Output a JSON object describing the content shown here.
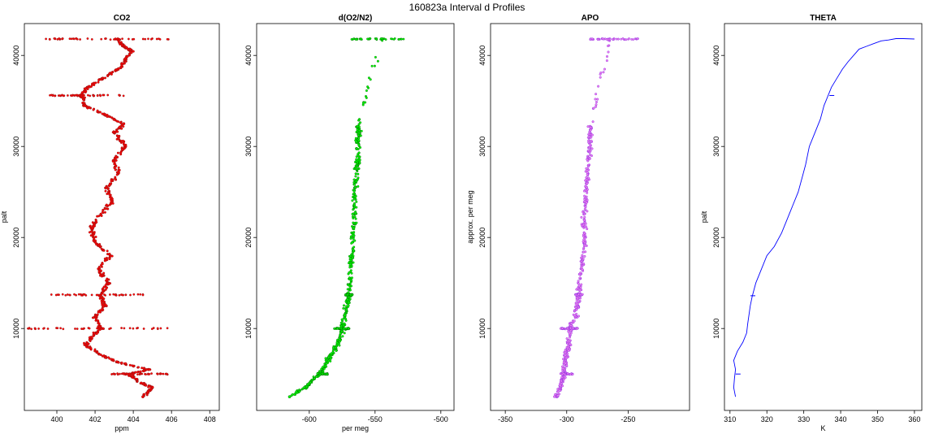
{
  "figure": {
    "title": "160823a   Interval d Profiles"
  },
  "chart_data": [
    {
      "type": "scatter",
      "title": "CO2",
      "xlabel": "ppm",
      "ylabel": "palt",
      "xlim": [
        398.3,
        408.5
      ],
      "ylim": [
        1000,
        43500
      ],
      "xticks": [
        400,
        402,
        404,
        406,
        408
      ],
      "yticks": [
        10000,
        20000,
        30000,
        40000
      ],
      "color": "#ff0000",
      "edge": "#8b1a1a",
      "series": [
        {
          "values": [
            [
              404.5,
              2500
            ],
            [
              405.0,
              3500
            ],
            [
              404.2,
              4200
            ],
            [
              403.8,
              5000
            ],
            [
              404.8,
              5500
            ],
            [
              403.2,
              6300
            ],
            [
              402.2,
              7200
            ],
            [
              401.5,
              8200
            ],
            [
              401.8,
              9000
            ],
            [
              402.3,
              10000
            ],
            [
              402.0,
              11300
            ],
            [
              402.5,
              12500
            ],
            [
              402.3,
              13700
            ],
            [
              402.7,
              15000
            ],
            [
              402.2,
              16500
            ],
            [
              402.8,
              18000
            ],
            [
              402.0,
              19500
            ],
            [
              401.8,
              21000
            ],
            [
              402.3,
              22500
            ],
            [
              402.9,
              24000
            ],
            [
              402.6,
              25500
            ],
            [
              403.2,
              27000
            ],
            [
              403.0,
              28500
            ],
            [
              403.6,
              30000
            ],
            [
              403.0,
              31500
            ],
            [
              403.5,
              32500
            ],
            [
              402.5,
              33500
            ],
            [
              401.4,
              34500
            ],
            [
              401.3,
              35600
            ],
            [
              401.6,
              36500
            ],
            [
              402.4,
              37500
            ],
            [
              403.2,
              38500
            ],
            [
              403.6,
              39500
            ],
            [
              403.9,
              40500
            ],
            [
              403.5,
              41000
            ],
            [
              403.2,
              41800
            ]
          ]
        }
      ]
    },
    {
      "type": "scatter",
      "title": "d(O2/N2)",
      "xlabel": "per meg",
      "ylabel": "",
      "xlim": [
        -640,
        -490
      ],
      "ylim": [
        1000,
        43500
      ],
      "xticks": [
        -600,
        -550,
        -500
      ],
      "yticks": [
        10000,
        20000,
        30000,
        40000
      ],
      "color": "#00ff00",
      "edge": "#006400",
      "series": [
        {
          "values": [
            [
              -615,
              2500
            ],
            [
              -603,
              3500
            ],
            [
              -598,
              4300
            ],
            [
              -592,
              5000
            ],
            [
              -588,
              5800
            ],
            [
              -585,
              6800
            ],
            [
              -580,
              7800
            ],
            [
              -577,
              8800
            ],
            [
              -575,
              9800
            ],
            [
              -573,
              11300
            ],
            [
              -571,
              12800
            ],
            [
              -570,
              13800
            ],
            [
              -569,
              15500
            ],
            [
              -568,
              17500
            ],
            [
              -567,
              19500
            ],
            [
              -566,
              21500
            ],
            [
              -566,
              23500
            ],
            [
              -565,
              25500
            ],
            [
              -564,
              27500
            ],
            [
              -563,
              28500
            ],
            [
              -563,
              30500
            ],
            [
              -562,
              31500
            ],
            [
              -563,
              32200
            ],
            [
              -545,
              41800
            ]
          ]
        }
      ]
    },
    {
      "type": "scatter",
      "title": "APO",
      "xlabel": "",
      "ylabel": "approx. per meg",
      "xlim": [
        -362,
        -200
      ],
      "ylim": [
        1000,
        43500
      ],
      "xticks": [
        -350,
        -300,
        -250
      ],
      "yticks": [
        10000,
        20000,
        30000,
        40000
      ],
      "color": "#ee82ee",
      "edge": "#8a2be2",
      "series": [
        {
          "values": [
            [
              -308,
              2500
            ],
            [
              -305,
              3500
            ],
            [
              -303,
              4500
            ],
            [
              -302,
              5500
            ],
            [
              -301,
              6500
            ],
            [
              -300,
              7500
            ],
            [
              -298,
              8500
            ],
            [
              -297,
              10000
            ],
            [
              -293,
              11300
            ],
            [
              -291,
              12500
            ],
            [
              -290,
              13700
            ],
            [
              -289,
              15500
            ],
            [
              -287,
              17500
            ],
            [
              -285,
              19500
            ],
            [
              -286,
              21500
            ],
            [
              -285,
              23500
            ],
            [
              -284,
              25500
            ],
            [
              -283,
              27500
            ],
            [
              -282,
              29500
            ],
            [
              -281,
              31000
            ],
            [
              -281,
              32200
            ],
            [
              -265,
              41800
            ]
          ]
        }
      ]
    },
    {
      "type": "line",
      "title": "THETA",
      "xlabel": "K",
      "ylabel": "palt",
      "xlim": [
        308.5,
        362
      ],
      "ylim": [
        1000,
        43500
      ],
      "xticks": [
        310,
        320,
        330,
        340,
        350,
        360
      ],
      "yticks": [
        10000,
        20000,
        30000,
        40000
      ],
      "color": "#0000ff",
      "series": [
        {
          "values": [
            [
              311.5,
              2500
            ],
            [
              311.0,
              3500
            ],
            [
              311.2,
              4500
            ],
            [
              311.5,
              5500
            ],
            [
              311.0,
              6500
            ],
            [
              312.0,
              7500
            ],
            [
              313.5,
              8500
            ],
            [
              314.5,
              9500
            ],
            [
              314.8,
              10500
            ],
            [
              315.5,
              12500
            ],
            [
              316.0,
              13500
            ],
            [
              317.0,
              15000
            ],
            [
              318.5,
              16500
            ],
            [
              320.0,
              18000
            ],
            [
              322.0,
              19000
            ],
            [
              324.0,
              20500
            ],
            [
              325.5,
              22000
            ],
            [
              327.0,
              23500
            ],
            [
              328.5,
              25000
            ],
            [
              329.5,
              26500
            ],
            [
              330.5,
              28000
            ],
            [
              331.5,
              30000
            ],
            [
              333.0,
              31500
            ],
            [
              334.5,
              33000
            ],
            [
              335.5,
              34500
            ],
            [
              336.5,
              35500
            ],
            [
              337.5,
              36500
            ],
            [
              339.0,
              37500
            ],
            [
              340.5,
              38500
            ],
            [
              342.0,
              39300
            ],
            [
              343.5,
              40000
            ],
            [
              345.0,
              40700
            ],
            [
              347.0,
              41000
            ],
            [
              349.0,
              41300
            ],
            [
              351.0,
              41600
            ],
            [
              353.0,
              41700
            ],
            [
              355.0,
              41850
            ],
            [
              357.0,
              41850
            ],
            [
              360.0,
              41800
            ]
          ]
        }
      ]
    }
  ]
}
